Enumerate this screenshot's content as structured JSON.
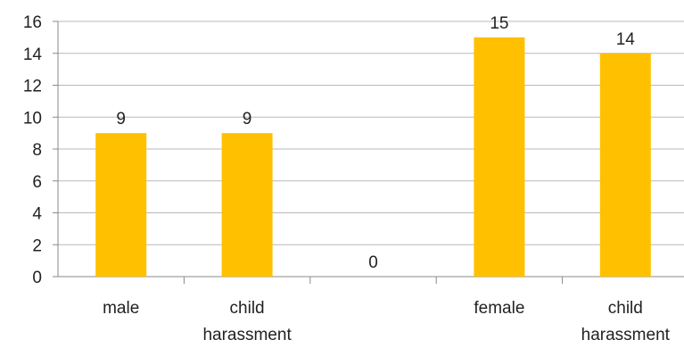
{
  "chart_data": {
    "type": "bar",
    "categories": [
      [
        "male"
      ],
      [
        "child",
        "harassment"
      ],
      [
        ""
      ],
      [
        "female"
      ],
      [
        "child",
        "harassment"
      ]
    ],
    "values": [
      9,
      9,
      0,
      15,
      14
    ],
    "data_labels": [
      "9",
      "9",
      "0",
      "15",
      "14"
    ],
    "ylim": [
      0,
      16
    ],
    "yticks": [
      0,
      2,
      4,
      6,
      8,
      10,
      12,
      14,
      16
    ],
    "grid": true,
    "legend": "none",
    "title": "",
    "xlabel": "",
    "ylabel": ""
  },
  "colors": {
    "bar": "#FFC000",
    "grid": "#b8b8b8",
    "axis": "#888888",
    "text": "#222222"
  }
}
